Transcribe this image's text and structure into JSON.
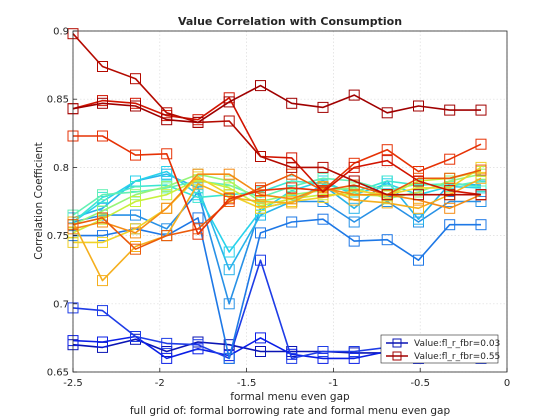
{
  "chart_data": {
    "type": "line",
    "title": "Value Correlation with Consumption",
    "xlabel": "formal menu even gap",
    "ylabel": "Correlation Coefficient",
    "caption": "full grid of: formal borrowing rate and formal menu even gap",
    "xlim": [
      -2.5,
      0
    ],
    "ylim": [
      0.65,
      0.9
    ],
    "grid": true,
    "x_ticks": [
      "-2.5",
      "-2",
      "-1.5",
      "-1",
      "-0.5",
      "0"
    ],
    "y_ticks": [
      "0.65",
      "0.7",
      "0.75",
      "0.8",
      "0.85",
      "0.9"
    ],
    "x": [
      -2.5,
      -2.33,
      -2.14,
      -1.96,
      -1.78,
      -1.6,
      -1.42,
      -1.24,
      -1.06,
      -0.88,
      -0.69,
      -0.51,
      -0.33,
      -0.15
    ],
    "legend": {
      "placement": "bottom-right",
      "entries": [
        "Value:fl_r_fbr=0.03",
        "Value:fl_r_fbr=0.55"
      ]
    },
    "series": [
      {
        "color": "#0a14b4",
        "values": [
          0.67,
          0.668,
          0.674,
          0.665,
          0.672,
          0.67,
          0.665,
          0.665,
          0.665,
          0.664,
          0.664,
          0.664,
          0.664,
          0.664
        ]
      },
      {
        "color": "#0a1ee6",
        "values": [
          0.673,
          0.672,
          0.676,
          0.66,
          0.667,
          0.662,
          0.675,
          0.663,
          0.66,
          0.66,
          0.665,
          0.66,
          0.662,
          0.662
        ]
      },
      {
        "color": "#1e3ce6",
        "values": [
          0.697,
          0.695,
          0.676,
          0.671,
          0.67,
          0.66,
          0.732,
          0.66,
          0.665,
          0.665,
          0.668,
          0.667,
          0.667,
          0.66
        ]
      },
      {
        "color": "#1e78e6",
        "values": [
          0.75,
          0.75,
          0.755,
          0.75,
          0.763,
          0.66,
          0.752,
          0.76,
          0.762,
          0.746,
          0.747,
          0.732,
          0.758,
          0.758
        ]
      },
      {
        "color": "#2891e6",
        "values": [
          0.76,
          0.765,
          0.765,
          0.755,
          0.782,
          0.7,
          0.77,
          0.775,
          0.775,
          0.76,
          0.775,
          0.76,
          0.775,
          0.775
        ]
      },
      {
        "color": "#28b4eb",
        "values": [
          0.763,
          0.77,
          0.79,
          0.795,
          0.785,
          0.725,
          0.765,
          0.775,
          0.787,
          0.77,
          0.79,
          0.762,
          0.788,
          0.787
        ]
      },
      {
        "color": "#28d2eb",
        "values": [
          0.76,
          0.775,
          0.79,
          0.797,
          0.78,
          0.738,
          0.768,
          0.783,
          0.79,
          0.78,
          0.788,
          0.78,
          0.786,
          0.785
        ]
      },
      {
        "color": "#3ce6d2",
        "values": [
          0.76,
          0.778,
          0.786,
          0.787,
          0.778,
          0.78,
          0.782,
          0.79,
          0.788,
          0.782,
          0.79,
          0.787,
          0.788,
          0.786
        ]
      },
      {
        "color": "#64f0b4",
        "values": [
          0.765,
          0.78,
          0.782,
          0.785,
          0.79,
          0.787,
          0.778,
          0.786,
          0.792,
          0.79,
          0.783,
          0.788,
          0.786,
          0.79
        ]
      },
      {
        "color": "#96f578",
        "values": [
          0.758,
          0.768,
          0.78,
          0.786,
          0.795,
          0.79,
          0.775,
          0.78,
          0.783,
          0.785,
          0.777,
          0.782,
          0.79,
          0.795
        ]
      },
      {
        "color": "#c8f03c",
        "values": [
          0.752,
          0.762,
          0.775,
          0.78,
          0.791,
          0.785,
          0.772,
          0.777,
          0.78,
          0.78,
          0.779,
          0.79,
          0.792,
          0.797
        ]
      },
      {
        "color": "#f0d228",
        "values": [
          0.745,
          0.745,
          0.755,
          0.77,
          0.793,
          0.78,
          0.77,
          0.775,
          0.778,
          0.783,
          0.78,
          0.785,
          0.785,
          0.8
        ]
      },
      {
        "color": "#f5af1e",
        "values": [
          0.76,
          0.717,
          0.742,
          0.75,
          0.788,
          0.778,
          0.775,
          0.774,
          0.786,
          0.776,
          0.774,
          0.77,
          0.78,
          0.792
        ]
      },
      {
        "color": "#f58c14",
        "values": [
          0.755,
          0.76,
          0.752,
          0.77,
          0.795,
          0.795,
          0.78,
          0.777,
          0.785,
          0.78,
          0.78,
          0.776,
          0.77,
          0.78
        ]
      },
      {
        "color": "#eb5a0a",
        "values": [
          0.758,
          0.763,
          0.74,
          0.75,
          0.755,
          0.775,
          0.785,
          0.795,
          0.783,
          0.787,
          0.78,
          0.792,
          0.792,
          0.798
        ]
      },
      {
        "color": "#e63205",
        "values": [
          0.823,
          0.823,
          0.809,
          0.81,
          0.751,
          0.777,
          0.783,
          0.785,
          0.783,
          0.803,
          0.813,
          0.797,
          0.806,
          0.817
        ]
      },
      {
        "color": "#d21400",
        "values": [
          0.843,
          0.849,
          0.847,
          0.838,
          0.835,
          0.851,
          0.808,
          0.807,
          0.782,
          0.8,
          0.805,
          0.79,
          0.783,
          0.78
        ]
      },
      {
        "color": "#b40a00",
        "values": [
          0.898,
          0.874,
          0.865,
          0.84,
          0.833,
          0.834,
          0.808,
          0.8,
          0.8,
          0.79,
          0.78,
          0.78,
          0.78,
          0.78
        ]
      },
      {
        "color": "#a00000",
        "values": [
          0.843,
          0.847,
          0.845,
          0.835,
          0.833,
          0.848,
          0.86,
          0.847,
          0.844,
          0.853,
          0.84,
          0.845,
          0.842,
          0.842
        ]
      }
    ]
  }
}
